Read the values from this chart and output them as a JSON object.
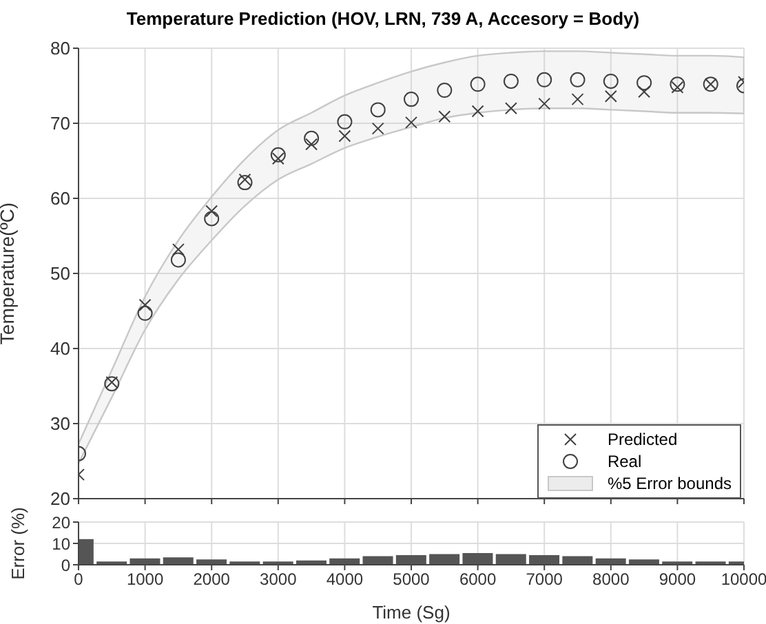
{
  "chart_data": [
    {
      "type": "scatter",
      "title": "Temperature Prediction (HOV, LRN, 739 A, Accesory = Body)",
      "ylabel": "Temperature(ºC)",
      "x": [
        0,
        500,
        1000,
        1500,
        2000,
        2500,
        3000,
        3500,
        4000,
        4500,
        5000,
        5500,
        6000,
        6500,
        7000,
        7500,
        8000,
        8500,
        9000,
        9500,
        10000
      ],
      "series": [
        {
          "name": "Predicted",
          "color": "#404040",
          "marker": "cross",
          "values": [
            23.2,
            35.5,
            45.8,
            53.2,
            58.3,
            62.5,
            65.3,
            67.2,
            68.3,
            69.3,
            70.1,
            70.9,
            71.6,
            72.0,
            72.6,
            73.2,
            73.6,
            74.2,
            74.8,
            75.2,
            75.5
          ]
        },
        {
          "name": "Real",
          "color": "#404040",
          "marker": "circle",
          "values": [
            26.0,
            35.3,
            44.7,
            51.8,
            57.3,
            62.1,
            65.8,
            68.0,
            70.2,
            71.8,
            73.2,
            74.4,
            75.2,
            75.6,
            75.8,
            75.8,
            75.6,
            75.4,
            75.2,
            75.2,
            75.0
          ],
          "lower": [
            24.7,
            33.5,
            42.5,
            49.2,
            54.4,
            59.0,
            62.5,
            64.6,
            66.7,
            68.2,
            69.5,
            70.7,
            71.4,
            71.8,
            72.0,
            72.0,
            71.8,
            71.6,
            71.4,
            71.4,
            71.3
          ],
          "upper": [
            27.3,
            37.1,
            46.9,
            54.4,
            60.2,
            65.2,
            69.1,
            71.4,
            73.7,
            75.4,
            76.9,
            78.1,
            79.0,
            79.4,
            79.6,
            79.6,
            79.4,
            79.2,
            79.0,
            79.0,
            78.8
          ]
        },
        {
          "name": "%5 Error bounds",
          "type": "area",
          "color": "#c8c8c8",
          "values": [
            null,
            null,
            null,
            null,
            null,
            null,
            null,
            null,
            null,
            null,
            null,
            null,
            null,
            null,
            null,
            null,
            null,
            null,
            null,
            null,
            null
          ]
        }
      ],
      "xlim": [
        0,
        10000
      ],
      "xticks": [
        0,
        1000,
        2000,
        3000,
        4000,
        5000,
        6000,
        7000,
        8000,
        9000,
        10000
      ],
      "ylim": [
        20,
        80
      ],
      "yticks": [
        20,
        30,
        40,
        50,
        60,
        70,
        80
      ],
      "grid": true,
      "legend": "bottom right",
      "tick_labels": "y"
    },
    {
      "type": "bar",
      "xlabel": "Time (Sg)",
      "ylabel": "Error (%)",
      "x": [
        0,
        500,
        1000,
        1500,
        2000,
        2500,
        3000,
        3500,
        4000,
        4500,
        5000,
        5500,
        6000,
        6500,
        7000,
        7500,
        8000,
        8500,
        9000,
        9500,
        10000
      ],
      "values": [
        12,
        1.5,
        3,
        3.5,
        2.5,
        1.5,
        1.5,
        2,
        3,
        4,
        4.5,
        5,
        5.5,
        5,
        4.5,
        4,
        3,
        2.5,
        1.5,
        1.5,
        1.5
      ],
      "color": "#555555",
      "xlim": [
        0,
        10000
      ],
      "xticks": [
        0,
        1000,
        2000,
        3000,
        4000,
        5000,
        6000,
        7000,
        8000,
        9000,
        10000
      ],
      "ylim": [
        0,
        20
      ],
      "yticks": [
        0,
        10,
        20
      ],
      "grid": true
    }
  ]
}
